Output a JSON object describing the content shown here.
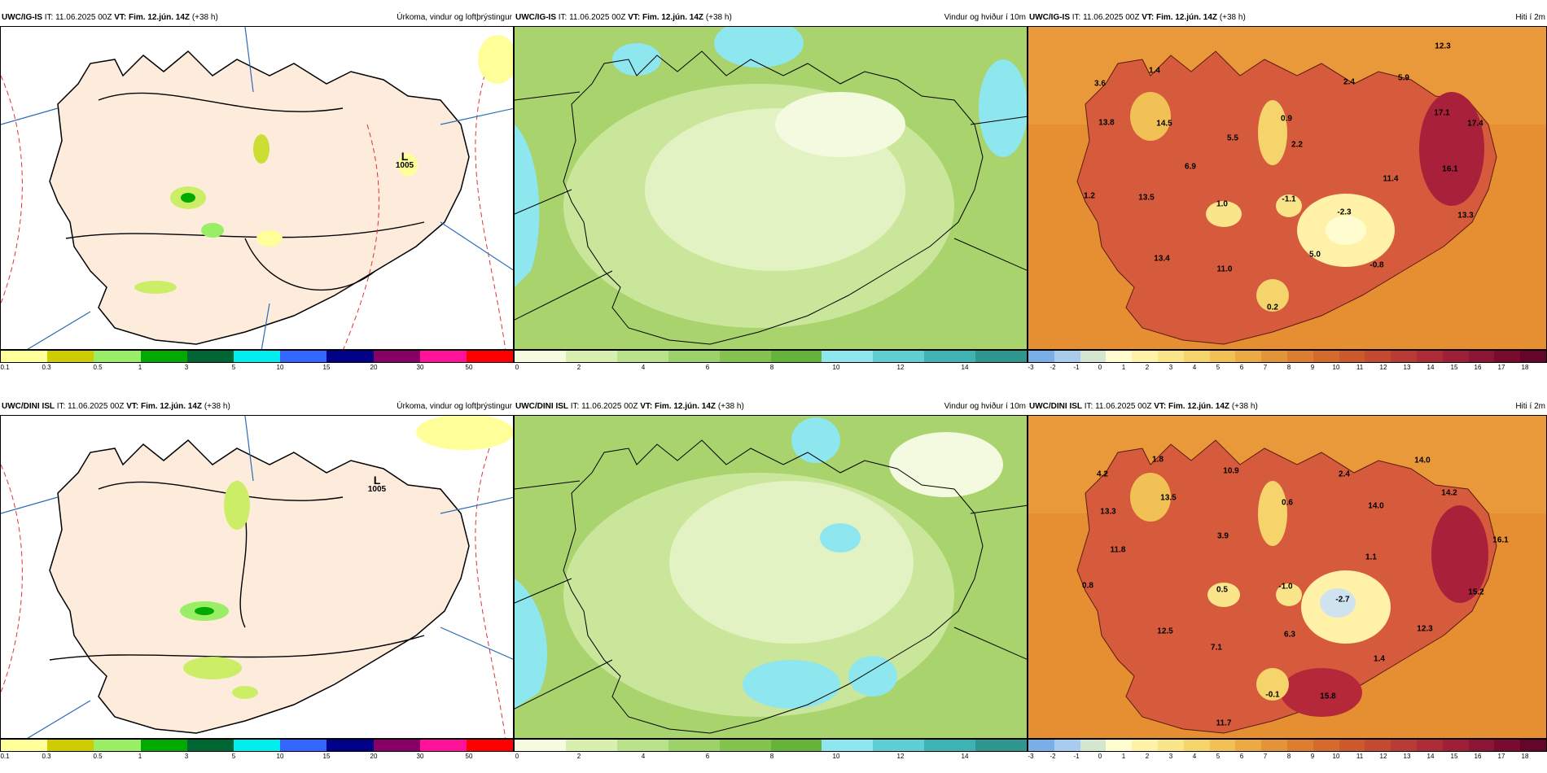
{
  "rows": [
    {
      "model": "UWC/IG-IS",
      "it": "IT: 11.06.2025 00Z",
      "vt": "VT: Fim. 12.jún. 14Z",
      "lead": "(+38 h)",
      "precip": {
        "title": "Úrkoma, vindur og loftþrýstingur",
        "low_letter": "L",
        "low_value": "1005"
      },
      "wind": {
        "title": "Vindur og hviður í 10m"
      },
      "temp": {
        "title": "Hiti í 2m",
        "values": [
          "3.6",
          "1.4",
          "13.8",
          "14.5",
          "5.5",
          "0.9",
          "2.4",
          "5.9",
          "12.3",
          "17.1",
          "17.4",
          "2.2",
          "6.9",
          "16.1",
          "11.4",
          "1.2",
          "13.5",
          "1.0",
          "-1.1",
          "-2.3",
          "13.3",
          "5.0",
          "-0.8",
          "13.4",
          "11.0",
          "0.2"
        ]
      }
    },
    {
      "model": "UWC/DINI ISL",
      "it": "IT: 11.06.2025 00Z",
      "vt": "VT: Fim. 12.jún. 14Z",
      "lead": "(+38 h)",
      "precip": {
        "title": "Úrkoma, vindur og loftþrýstingur",
        "low_letter": "L",
        "low_value": "1005"
      },
      "wind": {
        "title": "Vindur og hviður í 10m"
      },
      "temp": {
        "title": "Hiti í 2m",
        "values": [
          "4.2",
          "1.8",
          "10.9",
          "2.4",
          "14.0",
          "13.5",
          "13.3",
          "0.6",
          "14.0",
          "14.2",
          "16.1",
          "3.9",
          "11.8",
          "1.1",
          "0.8",
          "0.5",
          "-1.0",
          "-2.7",
          "15.2",
          "12.5",
          "6.3",
          "12.3",
          "7.1",
          "1.4",
          "-0.1",
          "15.8",
          "11.7"
        ]
      }
    }
  ],
  "legends": {
    "precip": {
      "colors": [
        "#ffff99",
        "#cccc00",
        "#99ee66",
        "#00aa00",
        "#006633",
        "#00eeee",
        "#3366ff",
        "#000088",
        "#880066",
        "#ff1199",
        "#ff0000"
      ],
      "ticks": [
        "0.1",
        "0.3",
        "0.5",
        "1",
        "3",
        "5",
        "10",
        "15",
        "20",
        "30",
        "50"
      ]
    },
    "wind": {
      "colors": [
        "#f6fbe0",
        "#d8efb0",
        "#b9e28a",
        "#9dd26a",
        "#84c34e",
        "#66b33a",
        "#8ee6ee",
        "#5fcfd3",
        "#3fb2b3",
        "#2f9690"
      ],
      "ticks": [
        "0",
        "2",
        "4",
        "6",
        "8",
        "10",
        "12",
        "14"
      ]
    },
    "temp": {
      "colors": [
        "#7aaee6",
        "#a8cbee",
        "#d4e6d0",
        "#fffdd0",
        "#fff2a8",
        "#fbe58a",
        "#f6d46c",
        "#f1c155",
        "#ebaa44",
        "#e39338",
        "#dc7d30",
        "#d46a2c",
        "#cc5a2c",
        "#c44a32",
        "#b93b36",
        "#ad2c38",
        "#9e1f38",
        "#8c1434",
        "#780b2e",
        "#64052a"
      ],
      "ticks": [
        "-3",
        "-2",
        "-1",
        "0",
        "1",
        "2",
        "3",
        "4",
        "5",
        "6",
        "7",
        "8",
        "9",
        "10",
        "11",
        "12",
        "13",
        "14",
        "15",
        "16",
        "17",
        "18"
      ]
    }
  },
  "colors": {
    "land_precip": "#fdebdc",
    "sea_precip": "#ffffff",
    "wind_base": "#a9d36c",
    "temp_sea": "#e58e32",
    "temp_land": "#d65a3c"
  }
}
